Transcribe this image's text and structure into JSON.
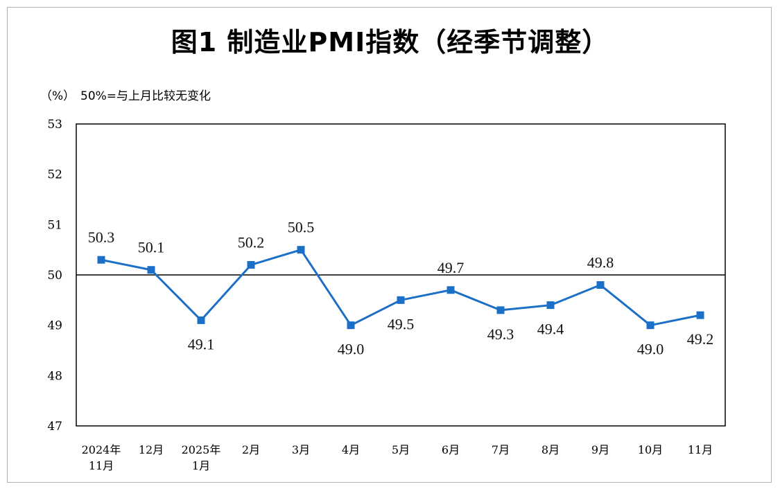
{
  "title": "图1  制造业PMI指数（经季节调整）",
  "unit_label": "（%）",
  "note": "50%=与上月比较无变化",
  "colors": {
    "series": "#1c6fc7",
    "axis": "#000000",
    "frame": "#b0b0b0"
  },
  "chart_data": {
    "type": "line",
    "title": "图1  制造业PMI指数（经季节调整）",
    "ylabel": "（%）",
    "annotation": "50%=与上月比较无变化",
    "ylim": [
      47,
      53
    ],
    "yticks": [
      47,
      48,
      49,
      50,
      51,
      52,
      53
    ],
    "reference_line": 50,
    "categories": [
      [
        "2024年",
        "11月"
      ],
      [
        "12月"
      ],
      [
        "2025年",
        "1月"
      ],
      [
        "2月"
      ],
      [
        "3月"
      ],
      [
        "4月"
      ],
      [
        "5月"
      ],
      [
        "6月"
      ],
      [
        "7月"
      ],
      [
        "8月"
      ],
      [
        "9月"
      ],
      [
        "10月"
      ],
      [
        "11月"
      ]
    ],
    "series": [
      {
        "values": [
          50.3,
          50.1,
          49.1,
          50.2,
          50.5,
          49.0,
          49.5,
          49.7,
          49.3,
          49.4,
          49.8,
          49.0,
          49.2
        ],
        "labels": [
          "50.3",
          "50.1",
          "49.1",
          "50.2",
          "50.5",
          "49.0",
          "49.5",
          "49.7",
          "49.3",
          "49.4",
          "49.8",
          "49.0",
          "49.2"
        ],
        "label_position": [
          "above",
          "above",
          "below",
          "above",
          "above",
          "below",
          "below",
          "above",
          "below",
          "below",
          "above",
          "below",
          "below"
        ],
        "marker": "square"
      }
    ],
    "grid": false,
    "legend": "none"
  }
}
